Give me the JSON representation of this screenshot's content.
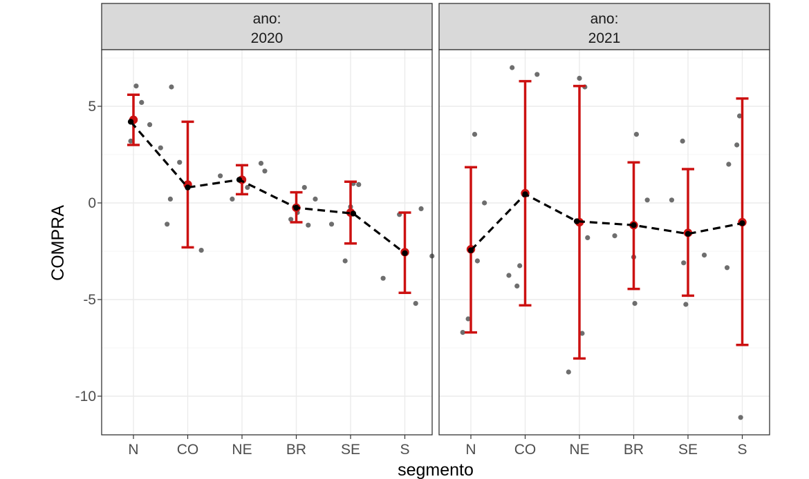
{
  "chart_data": {
    "type": "scatter",
    "xlabel": "segmento",
    "ylabel": "COMPRA",
    "categories": [
      "N",
      "CO",
      "NE",
      "BR",
      "SE",
      "S"
    ],
    "ylim": [
      -12,
      8
    ],
    "yticks": [
      5,
      0,
      -5,
      -10
    ],
    "ytick_labels": [
      "5",
      "0",
      "-5",
      "-10"
    ],
    "facet_label_prefix": "ano:",
    "grid": true,
    "colors": {
      "points": "#555555",
      "error_bars": "#cc1111",
      "mean_line": "#000000",
      "strip_fill": "#d9d9d9",
      "grid": "#ebebeb"
    },
    "panels": [
      {
        "label": "2020",
        "summary": [
          {
            "segment": "N",
            "mean": 4.3,
            "low": 3.0,
            "high": 5.6
          },
          {
            "segment": "CO",
            "mean": 0.95,
            "low": -2.3,
            "high": 4.2
          },
          {
            "segment": "NE",
            "mean": 1.2,
            "low": 0.45,
            "high": 1.95
          },
          {
            "segment": "BR",
            "mean": -0.25,
            "low": -1.0,
            "high": 0.55
          },
          {
            "segment": "SE",
            "mean": -0.5,
            "low": -2.1,
            "high": 1.1
          },
          {
            "segment": "S",
            "mean": -2.55,
            "low": -4.65,
            "high": -0.5
          }
        ],
        "line": [
          {
            "x": 0.95,
            "y": 4.2
          },
          {
            "x": 2.0,
            "y": 0.8
          },
          {
            "x": 2.95,
            "y": 1.2
          },
          {
            "x": 4.0,
            "y": -0.25
          },
          {
            "x": 5.05,
            "y": -0.55
          },
          {
            "x": 6.0,
            "y": -2.6
          }
        ],
        "points": [
          {
            "x": 0.95,
            "y": 3.2
          },
          {
            "x": 1.05,
            "y": 6.05
          },
          {
            "x": 1.15,
            "y": 5.2
          },
          {
            "x": 1.3,
            "y": 4.05
          },
          {
            "x": 1.5,
            "y": 2.85
          },
          {
            "x": 1.62,
            "y": -1.1
          },
          {
            "x": 1.68,
            "y": 0.2
          },
          {
            "x": 1.7,
            "y": 6.0
          },
          {
            "x": 1.85,
            "y": 2.1
          },
          {
            "x": 2.25,
            "y": -2.45
          },
          {
            "x": 2.6,
            "y": 1.4
          },
          {
            "x": 2.82,
            "y": 0.2
          },
          {
            "x": 3.1,
            "y": 0.8
          },
          {
            "x": 3.35,
            "y": 2.05
          },
          {
            "x": 3.42,
            "y": 1.65
          },
          {
            "x": 3.9,
            "y": -0.85
          },
          {
            "x": 4.02,
            "y": -0.5
          },
          {
            "x": 4.15,
            "y": 0.8
          },
          {
            "x": 4.22,
            "y": -1.15
          },
          {
            "x": 4.35,
            "y": 0.2
          },
          {
            "x": 4.65,
            "y": -1.1
          },
          {
            "x": 4.9,
            "y": -3.0
          },
          {
            "x": 5.0,
            "y": -0.2
          },
          {
            "x": 5.05,
            "y": 1.0
          },
          {
            "x": 5.15,
            "y": 0.95
          },
          {
            "x": 5.6,
            "y": -3.9
          },
          {
            "x": 5.9,
            "y": -0.6
          },
          {
            "x": 6.2,
            "y": -5.2
          },
          {
            "x": 6.3,
            "y": -0.3
          },
          {
            "x": 6.5,
            "y": -2.75
          }
        ]
      },
      {
        "label": "2021",
        "summary": [
          {
            "segment": "N",
            "mean": -2.4,
            "low": -6.7,
            "high": 1.85
          },
          {
            "segment": "CO",
            "mean": 0.5,
            "low": -5.3,
            "high": 6.3
          },
          {
            "segment": "NE",
            "mean": -1.0,
            "low": -8.05,
            "high": 6.05
          },
          {
            "segment": "BR",
            "mean": -1.15,
            "low": -4.45,
            "high": 2.1
          },
          {
            "segment": "SE",
            "mean": -1.55,
            "low": -4.8,
            "high": 1.75
          },
          {
            "segment": "S",
            "mean": -1.0,
            "low": -7.35,
            "high": 5.4
          }
        ],
        "line": [
          {
            "x": 1.0,
            "y": -2.45
          },
          {
            "x": 2.0,
            "y": 0.45
          },
          {
            "x": 2.95,
            "y": -0.95
          },
          {
            "x": 4.0,
            "y": -1.15
          },
          {
            "x": 5.0,
            "y": -1.6
          },
          {
            "x": 6.0,
            "y": -1.05
          }
        ],
        "points": [
          {
            "x": 0.85,
            "y": -6.7
          },
          {
            "x": 0.95,
            "y": -6.0
          },
          {
            "x": 1.07,
            "y": 3.55
          },
          {
            "x": 1.12,
            "y": -3.0
          },
          {
            "x": 1.25,
            "y": 0.0
          },
          {
            "x": 1.7,
            "y": -3.75
          },
          {
            "x": 1.76,
            "y": 7.0
          },
          {
            "x": 1.85,
            "y": -4.3
          },
          {
            "x": 1.9,
            "y": -3.25
          },
          {
            "x": 2.22,
            "y": 6.65
          },
          {
            "x": 2.8,
            "y": -8.75
          },
          {
            "x": 3.0,
            "y": 6.45
          },
          {
            "x": 3.05,
            "y": -6.75
          },
          {
            "x": 3.1,
            "y": 6.0
          },
          {
            "x": 3.15,
            "y": -1.8
          },
          {
            "x": 3.65,
            "y": -1.7
          },
          {
            "x": 4.0,
            "y": -2.8
          },
          {
            "x": 4.02,
            "y": -5.2
          },
          {
            "x": 4.05,
            "y": 3.55
          },
          {
            "x": 4.25,
            "y": 0.15
          },
          {
            "x": 4.7,
            "y": 0.15
          },
          {
            "x": 4.9,
            "y": 3.2
          },
          {
            "x": 4.92,
            "y": -3.1
          },
          {
            "x": 4.96,
            "y": -5.25
          },
          {
            "x": 5.3,
            "y": -2.7
          },
          {
            "x": 5.75,
            "y": 2.0
          },
          {
            "x": 5.72,
            "y": -3.35
          },
          {
            "x": 5.9,
            "y": 3.0
          },
          {
            "x": 5.95,
            "y": 4.5
          },
          {
            "x": 5.97,
            "y": -11.1
          }
        ]
      }
    ]
  }
}
